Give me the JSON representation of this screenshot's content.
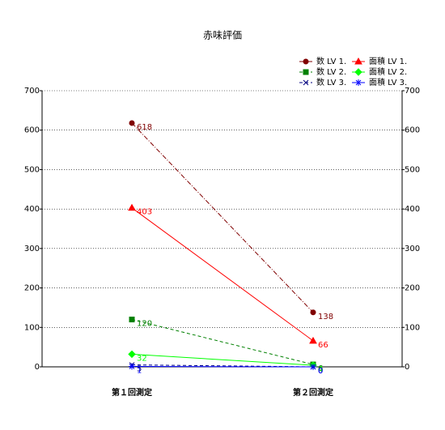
{
  "chart_data": {
    "type": "line",
    "title": "赤味評価",
    "categories": [
      "第１回測定",
      "第２回測定"
    ],
    "series": [
      {
        "name": "数 LV 1.",
        "color": "#800000",
        "marker": "circle",
        "dash": "dashdot",
        "values": [
          618,
          138
        ]
      },
      {
        "name": "面積 LV 1.",
        "color": "#ff0000",
        "marker": "triangle",
        "dash": "solid",
        "values": [
          403,
          66
        ]
      },
      {
        "name": "数 LV 2.",
        "color": "#008000",
        "marker": "square",
        "dash": "dash",
        "values": [
          120,
          6
        ]
      },
      {
        "name": "面積 LV 2.",
        "color": "#00ff00",
        "marker": "diamond",
        "dash": "solid",
        "values": [
          32,
          4
        ]
      },
      {
        "name": "数 LV 3.",
        "color": "#000080",
        "marker": "x",
        "dash": "dash",
        "values": [
          5,
          0
        ]
      },
      {
        "name": "面積 LV 3.",
        "color": "#0000ff",
        "marker": "star",
        "dash": "solid",
        "values": [
          1,
          0
        ]
      }
    ],
    "ylim": [
      0,
      700
    ],
    "yticks": [
      0,
      100,
      200,
      300,
      400,
      500,
      600,
      700
    ],
    "y2lim": [
      0,
      700
    ],
    "y2ticks": [
      0,
      100,
      200,
      300,
      400,
      500,
      600,
      700
    ],
    "grid": true,
    "legend": "top-right"
  }
}
